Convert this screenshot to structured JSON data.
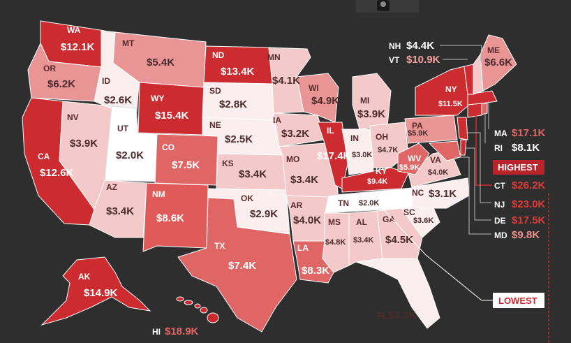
{
  "colors": {
    "background": "#2e2e2e",
    "lowest": "#fbeeee",
    "low": "#f3c9c9",
    "mid": "#ea9595",
    "high": "#e06666",
    "highest": "#cc2b2f"
  },
  "labels": {
    "highest": "HIGHEST",
    "lowest": "LOWEST"
  },
  "states": {
    "WA": {
      "abbr": "WA",
      "value": "$12.1K"
    },
    "OR": {
      "abbr": "OR",
      "value": "$6.2K"
    },
    "CA": {
      "abbr": "CA",
      "value": "$12.6K"
    },
    "NV": {
      "abbr": "NV",
      "value": "$3.9K"
    },
    "ID": {
      "abbr": "ID",
      "value": "$2.6K"
    },
    "MT": {
      "abbr": "MT",
      "value": "$5.4K"
    },
    "WY": {
      "abbr": "WY",
      "value": "$15.4K"
    },
    "UT": {
      "abbr": "UT",
      "value": "$2.0K"
    },
    "AZ": {
      "abbr": "AZ",
      "value": "$3.4K"
    },
    "CO": {
      "abbr": "CO",
      "value": "$7.5K"
    },
    "NM": {
      "abbr": "NM",
      "value": "$8.6K"
    },
    "ND": {
      "abbr": "ND",
      "value": "$13.4K"
    },
    "SD": {
      "abbr": "SD",
      "value": "$2.8K"
    },
    "NE": {
      "abbr": "NE",
      "value": "$2.5K"
    },
    "KS": {
      "abbr": "KS",
      "value": "$3.4K"
    },
    "OK": {
      "abbr": "OK",
      "value": "$2.9K"
    },
    "TX": {
      "abbr": "TX",
      "value": "$7.4K"
    },
    "MN": {
      "abbr": "MN",
      "value": "$4.1K"
    },
    "IA": {
      "abbr": "IA",
      "value": "$3.2K"
    },
    "MO": {
      "abbr": "MO",
      "value": "$3.4K"
    },
    "AR": {
      "abbr": "AR",
      "value": "$4.0K"
    },
    "LA": {
      "abbr": "LA",
      "value": "$8.3K"
    },
    "WI": {
      "abbr": "WI",
      "value": "$4.9K"
    },
    "IL": {
      "abbr": "IL",
      "value": "$17.4K"
    },
    "MS": {
      "abbr": "MS",
      "value": "$4.8K"
    },
    "MI": {
      "abbr": "MI",
      "value": "$3.9K"
    },
    "IN": {
      "abbr": "IN",
      "value": "$3.0K"
    },
    "KY": {
      "abbr": "KY",
      "value": "$9.4K"
    },
    "TN": {
      "abbr": "TN",
      "value": "$2.0K"
    },
    "AL": {
      "abbr": "AL",
      "value": "$3.4K"
    },
    "GA": {
      "abbr": "GA",
      "value": "$4.5K"
    },
    "FL": {
      "abbr": "FL",
      "value": "$3.3K"
    },
    "OH": {
      "abbr": "OH",
      "value": "$4.7K"
    },
    "WV": {
      "abbr": "WV",
      "value": "$5.9K"
    },
    "VA": {
      "abbr": "VA",
      "value": "$4.0K"
    },
    "NC": {
      "abbr": "NC",
      "value": "$3.1K"
    },
    "SC": {
      "abbr": "SC",
      "value": "$3.6K"
    },
    "PA": {
      "abbr": "PA",
      "value": "$5.9K"
    },
    "NY": {
      "abbr": "NY",
      "value": "$11.5K"
    },
    "ME": {
      "abbr": "ME",
      "value": "$6.6K"
    },
    "NH": {
      "abbr": "NH",
      "value": "$4.4K"
    },
    "VT": {
      "abbr": "VT",
      "value": "$10.9K"
    },
    "MA": {
      "abbr": "MA",
      "value": "$17.1K"
    },
    "RI": {
      "abbr": "RI",
      "value": "$8.1K"
    },
    "CT": {
      "abbr": "CT",
      "value": "$26.2K"
    },
    "NJ": {
      "abbr": "NJ",
      "value": "$23.0K"
    },
    "DE": {
      "abbr": "DE",
      "value": "$17.5K"
    },
    "MD": {
      "abbr": "MD",
      "value": "$9.8K"
    },
    "AK": {
      "abbr": "AK",
      "value": "$14.9K"
    },
    "HI": {
      "abbr": "HI",
      "value": "$18.9K"
    }
  }
}
